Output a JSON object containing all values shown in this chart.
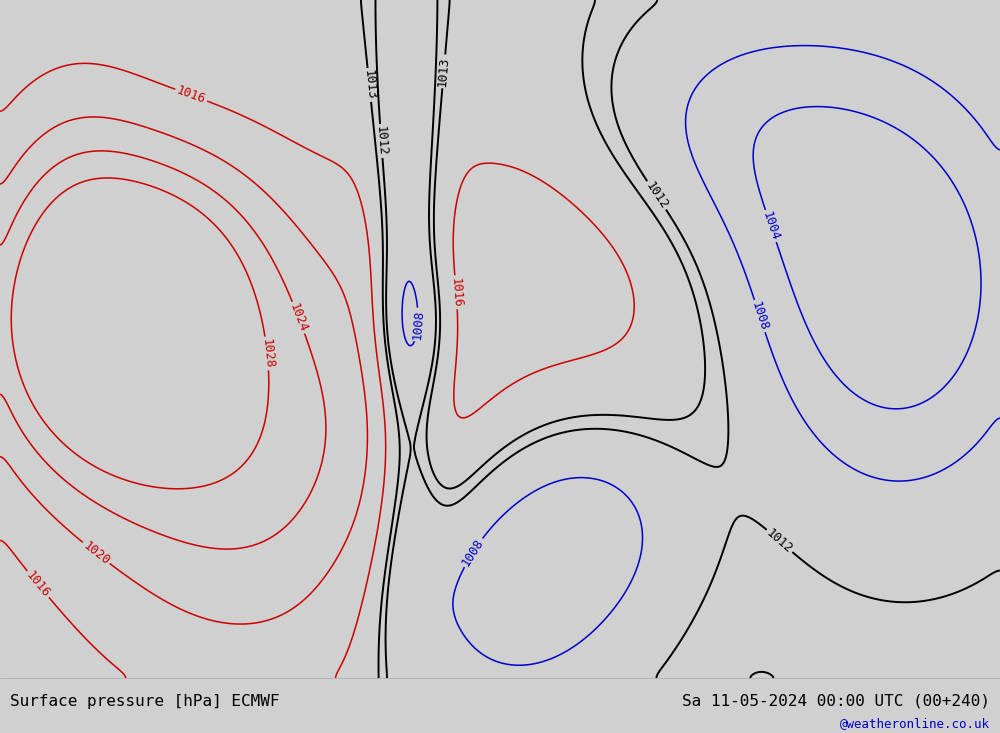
{
  "title_left": "Surface pressure [hPa] ECMWF",
  "title_right": "Sa 11-05-2024 00:00 UTC (00+240)",
  "watermark": "@weatheronline.co.uk",
  "bg_color": "#d0d0d0",
  "land_color": "#b8ddb8",
  "ocean_color": "#d0d0d0",
  "glaciated_color": "#b0b0b0",
  "bottom_bar_color": "#e0e0e0",
  "bottom_bar_height": 0.075,
  "label_fontsize": 11.5,
  "watermark_fontsize": 9,
  "contour_linewidth_black": 1.4,
  "contour_linewidth_red": 1.1,
  "contour_linewidth_blue": 1.1,
  "contour_color_black": "#000000",
  "contour_color_red": "#cc0000",
  "contour_color_blue": "#0000cc",
  "clabel_fontsize": 9,
  "lon_min": -180,
  "lon_max": -40,
  "lat_min": 14,
  "lat_max": 80
}
